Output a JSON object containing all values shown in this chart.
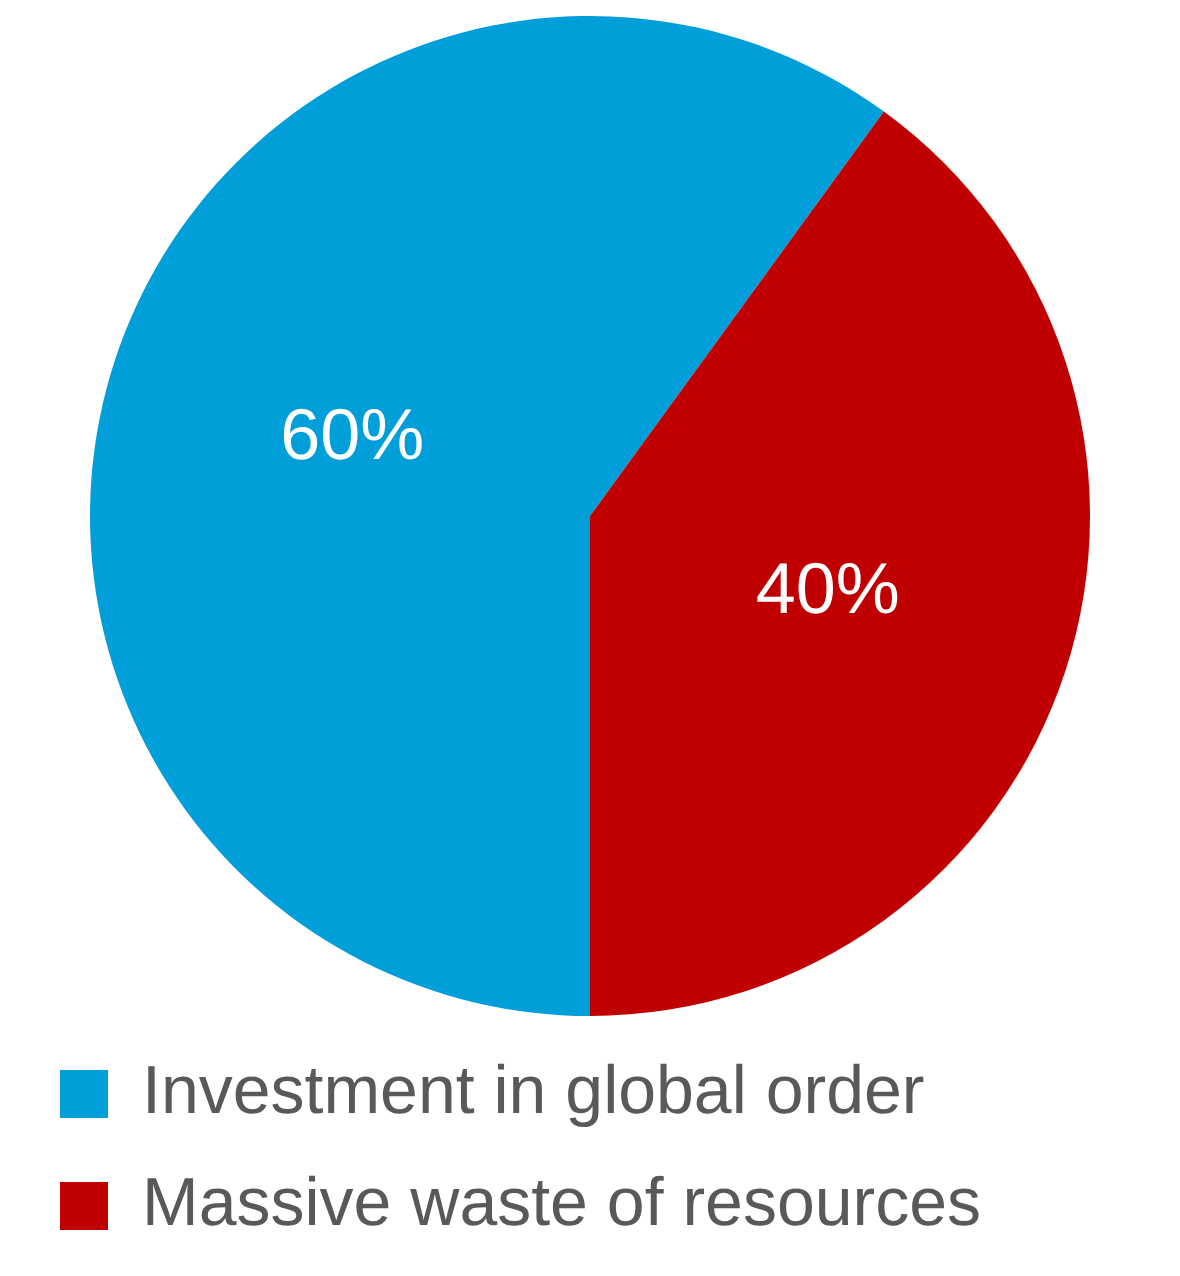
{
  "chart_data": {
    "type": "pie",
    "categories": [
      "Investment in global order",
      "Massive waste of resources"
    ],
    "values": [
      60,
      40
    ],
    "colors": [
      "#009fda",
      "#c00000"
    ],
    "value_labels": [
      "60%",
      "40%"
    ],
    "legend": "bottom"
  }
}
